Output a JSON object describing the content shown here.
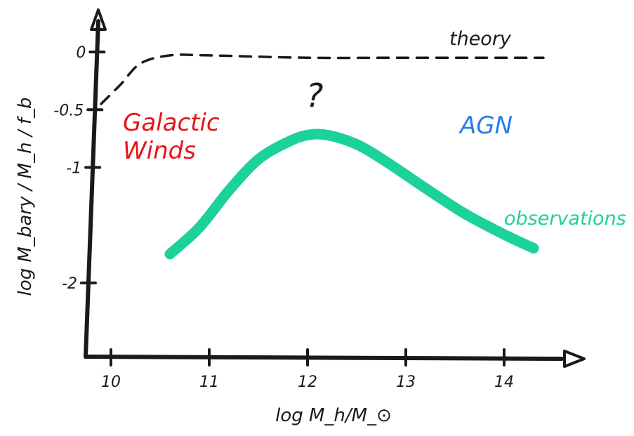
{
  "chart_data": {
    "type": "line",
    "title": "",
    "xlabel": "log M_h/M_⊙",
    "ylabel": "log M_bary / M_h / f_b",
    "xlim": [
      9.7,
      14.6
    ],
    "ylim": [
      -2.65,
      0.35
    ],
    "x_ticks": [
      {
        "value": 10,
        "label": "10"
      },
      {
        "value": 11,
        "label": "11"
      },
      {
        "value": 12,
        "label": "12"
      },
      {
        "value": 13,
        "label": "13"
      },
      {
        "value": 14,
        "label": "14"
      }
    ],
    "y_ticks": [
      {
        "value": 0,
        "label": "0"
      },
      {
        "value": -0.5,
        "label": "-0.5"
      },
      {
        "value": -1,
        "label": "-1"
      },
      {
        "value": -2,
        "label": "-2"
      }
    ],
    "series": [
      {
        "name": "theory",
        "style": "dashed",
        "color": "#1a1a1a",
        "x": [
          9.9,
          10.1,
          10.3,
          10.6,
          11.0,
          12.0,
          13.0,
          14.0,
          14.4
        ],
        "y": [
          -0.45,
          -0.28,
          -0.1,
          -0.03,
          -0.03,
          -0.05,
          -0.05,
          -0.05,
          -0.05
        ]
      },
      {
        "name": "observations",
        "style": "thick",
        "color": "#1dd19a",
        "x": [
          10.6,
          10.9,
          11.2,
          11.5,
          11.8,
          12.0,
          12.2,
          12.5,
          12.8,
          13.2,
          13.6,
          14.0,
          14.3
        ],
        "y": [
          -1.75,
          -1.52,
          -1.2,
          -0.93,
          -0.78,
          -0.72,
          -0.72,
          -0.8,
          -0.95,
          -1.18,
          -1.4,
          -1.58,
          -1.7
        ]
      }
    ],
    "annotations": [
      {
        "text": "Galactic Winds",
        "color": "#e8141a"
      },
      {
        "text": "AGN",
        "color": "#2b7de9"
      },
      {
        "text": "?",
        "color": "#1a1a1a"
      }
    ]
  }
}
